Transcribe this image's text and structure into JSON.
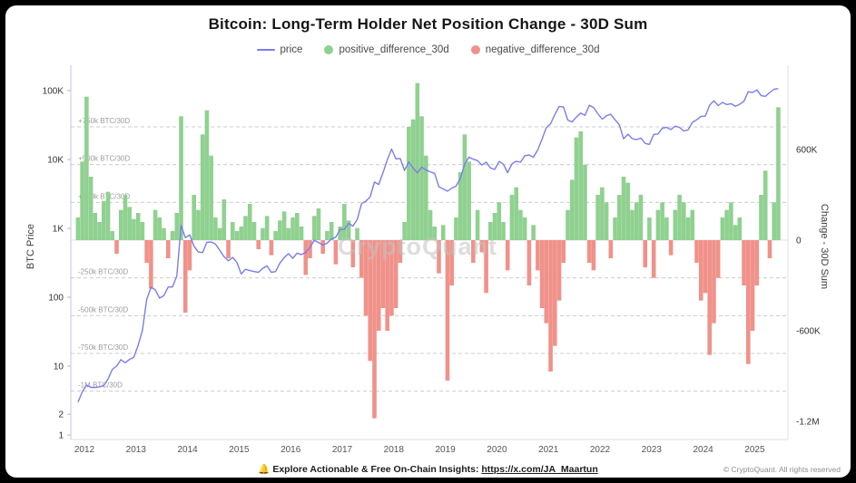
{
  "title": "Bitcoin: Long-Term Holder Net Position Change - 30D Sum",
  "watermark": "CryptoQuant",
  "legend": [
    {
      "label": "price",
      "color": "#7b7cf0",
      "type": "line"
    },
    {
      "label": "positive_difference_30d",
      "color": "#8fd18f",
      "type": "dot"
    },
    {
      "label": "negative_difference_30d",
      "color": "#f0928a",
      "type": "dot"
    }
  ],
  "axes": {
    "left_title": "BTC Price",
    "right_title": "Change - 30D Sum",
    "left_ticks": [
      {
        "label": "100K",
        "value": 100000
      },
      {
        "label": "10K",
        "value": 10000
      },
      {
        "label": "1K",
        "value": 1000
      },
      {
        "label": "100",
        "value": 100
      },
      {
        "label": "10",
        "value": 10
      },
      {
        "label": "2",
        "value": 2
      },
      {
        "label": "1",
        "value": 1
      }
    ],
    "right_ticks": [
      {
        "label": "600K",
        "value": 600000
      },
      {
        "label": "0",
        "value": 0
      },
      {
        "label": "-600K",
        "value": -600000
      },
      {
        "label": "-1.2M",
        "value": -1200000
      }
    ],
    "x_ticks": [
      "2012",
      "2013",
      "2014",
      "2015",
      "2016",
      "2017",
      "2018",
      "2019",
      "2020",
      "2021",
      "2022",
      "2023",
      "2024",
      "2025"
    ],
    "grid_levels": [
      {
        "label": "+750k BTC/30D",
        "value": 750000
      },
      {
        "label": "+500k BTC/30D",
        "value": 500000
      },
      {
        "label": "+250k BTC/30D",
        "value": 250000
      },
      {
        "label": "-250k BTC/30D",
        "value": -250000
      },
      {
        "label": "-500k BTC/30D",
        "value": -500000
      },
      {
        "label": "-750k BTC/30D",
        "value": -750000
      },
      {
        "label": "-1M BTC/30D",
        "value": -1000000
      }
    ]
  },
  "footer": {
    "bell_icon": "🔔",
    "text": "Explore Actionable & Free On-Chain Insights: ",
    "link": "https://x.com/JA_Maartun",
    "copyright": "© CryptoQuant. All rights reserved"
  },
  "chart_data": {
    "type": "combo",
    "x_range": [
      2011.8,
      2025.6
    ],
    "left_axis": {
      "scale": "log",
      "min": 1,
      "max": 180000,
      "label": "BTC Price"
    },
    "right_axis": {
      "scale": "linear",
      "min": -1320000,
      "max": 1320000,
      "label": "Change - 30D Sum"
    },
    "start": {
      "year": 2011,
      "month": 11
    },
    "freq": "monthly",
    "series": [
      {
        "name": "price",
        "type": "line",
        "axis": "log-left",
        "color": "#7b7cf0",
        "values": [
          3,
          4.2,
          5.3,
          4.9,
          4.9,
          5.0,
          5.2,
          6.5,
          9.0,
          10.0,
          12.4,
          11.2,
          12.5,
          13.5,
          20,
          33,
          93,
          139,
          128,
          97,
          106,
          141,
          141,
          204,
          1100,
          732,
          806,
          550,
          454,
          446,
          627,
          635,
          590,
          480,
          387,
          338,
          378,
          320,
          217,
          254,
          244,
          236,
          230,
          263,
          284,
          230,
          236,
          314,
          377,
          430,
          368,
          437,
          416,
          448,
          531,
          673,
          624,
          575,
          610,
          700,
          745,
          963,
          970,
          1180,
          1080,
          1350,
          2290,
          2480,
          2870,
          4700,
          4340,
          6470,
          9920,
          14160,
          10220,
          10340,
          6930,
          9240,
          7500,
          6400,
          7730,
          7010,
          6630,
          6300,
          4020,
          3740,
          3460,
          3850,
          4100,
          5320,
          8560,
          10820,
          10090,
          9630,
          8290,
          9150,
          7550,
          7190,
          9350,
          8530,
          6440,
          8620,
          9450,
          9140,
          11350,
          11650,
          10780,
          13800,
          19700,
          28990,
          33110,
          45160,
          58780,
          57750,
          37330,
          35040,
          41460,
          47160,
          43790,
          61320,
          57000,
          46210,
          38480,
          43190,
          45540,
          37710,
          31790,
          19940,
          23290,
          20050,
          19430,
          20490,
          17170,
          16540,
          23130,
          23470,
          28480,
          29230,
          27220,
          30470,
          29230,
          25930,
          26960,
          34670,
          37710,
          42270,
          42580,
          61200,
          71330,
          60640,
          67540,
          62680,
          64620,
          58970,
          63330,
          70220,
          96450,
          93430,
          102400,
          84350,
          82550,
          94180,
          104600,
          107000
        ]
      },
      {
        "name": "net_position_change_30d_sum",
        "type": "bar",
        "axis": "linear-right",
        "unit": "BTC (thousands)",
        "positive_color": "#8fd18f",
        "negative_color": "#f0928a",
        "values_thousands": [
          150,
          520,
          950,
          420,
          180,
          120,
          260,
          320,
          60,
          -90,
          200,
          300,
          220,
          140,
          180,
          120,
          -150,
          -320,
          200,
          150,
          80,
          -120,
          60,
          180,
          820,
          -480,
          -200,
          300,
          200,
          700,
          860,
          560,
          150,
          80,
          270,
          -120,
          120,
          60,
          90,
          160,
          240,
          120,
          -60,
          80,
          160,
          -100,
          60,
          130,
          190,
          80,
          150,
          180,
          90,
          -230,
          -120,
          160,
          210,
          -90,
          60,
          120,
          -160,
          90,
          240,
          130,
          -180,
          80,
          -250,
          -500,
          -800,
          -1180,
          -600,
          -450,
          -600,
          -500,
          -450,
          -150,
          120,
          750,
          800,
          1040,
          820,
          560,
          200,
          90,
          -220,
          100,
          -930,
          -300,
          150,
          450,
          700,
          520,
          -150,
          200,
          -80,
          -350,
          120,
          180,
          250,
          120,
          -200,
          300,
          350,
          200,
          150,
          -300,
          100,
          -200,
          -450,
          -550,
          -870,
          -700,
          -400,
          -150,
          200,
          400,
          680,
          720,
          500,
          -150,
          -200,
          300,
          350,
          250,
          -120,
          150,
          300,
          420,
          380,
          200,
          250,
          300,
          -180,
          150,
          -250,
          200,
          250,
          150,
          -100,
          200,
          300,
          250,
          150,
          200,
          -150,
          -400,
          -350,
          -760,
          -550,
          -250,
          150,
          200,
          250,
          100,
          150,
          -300,
          -820,
          -600,
          -300,
          300,
          460,
          -120,
          250,
          880
        ]
      }
    ]
  }
}
